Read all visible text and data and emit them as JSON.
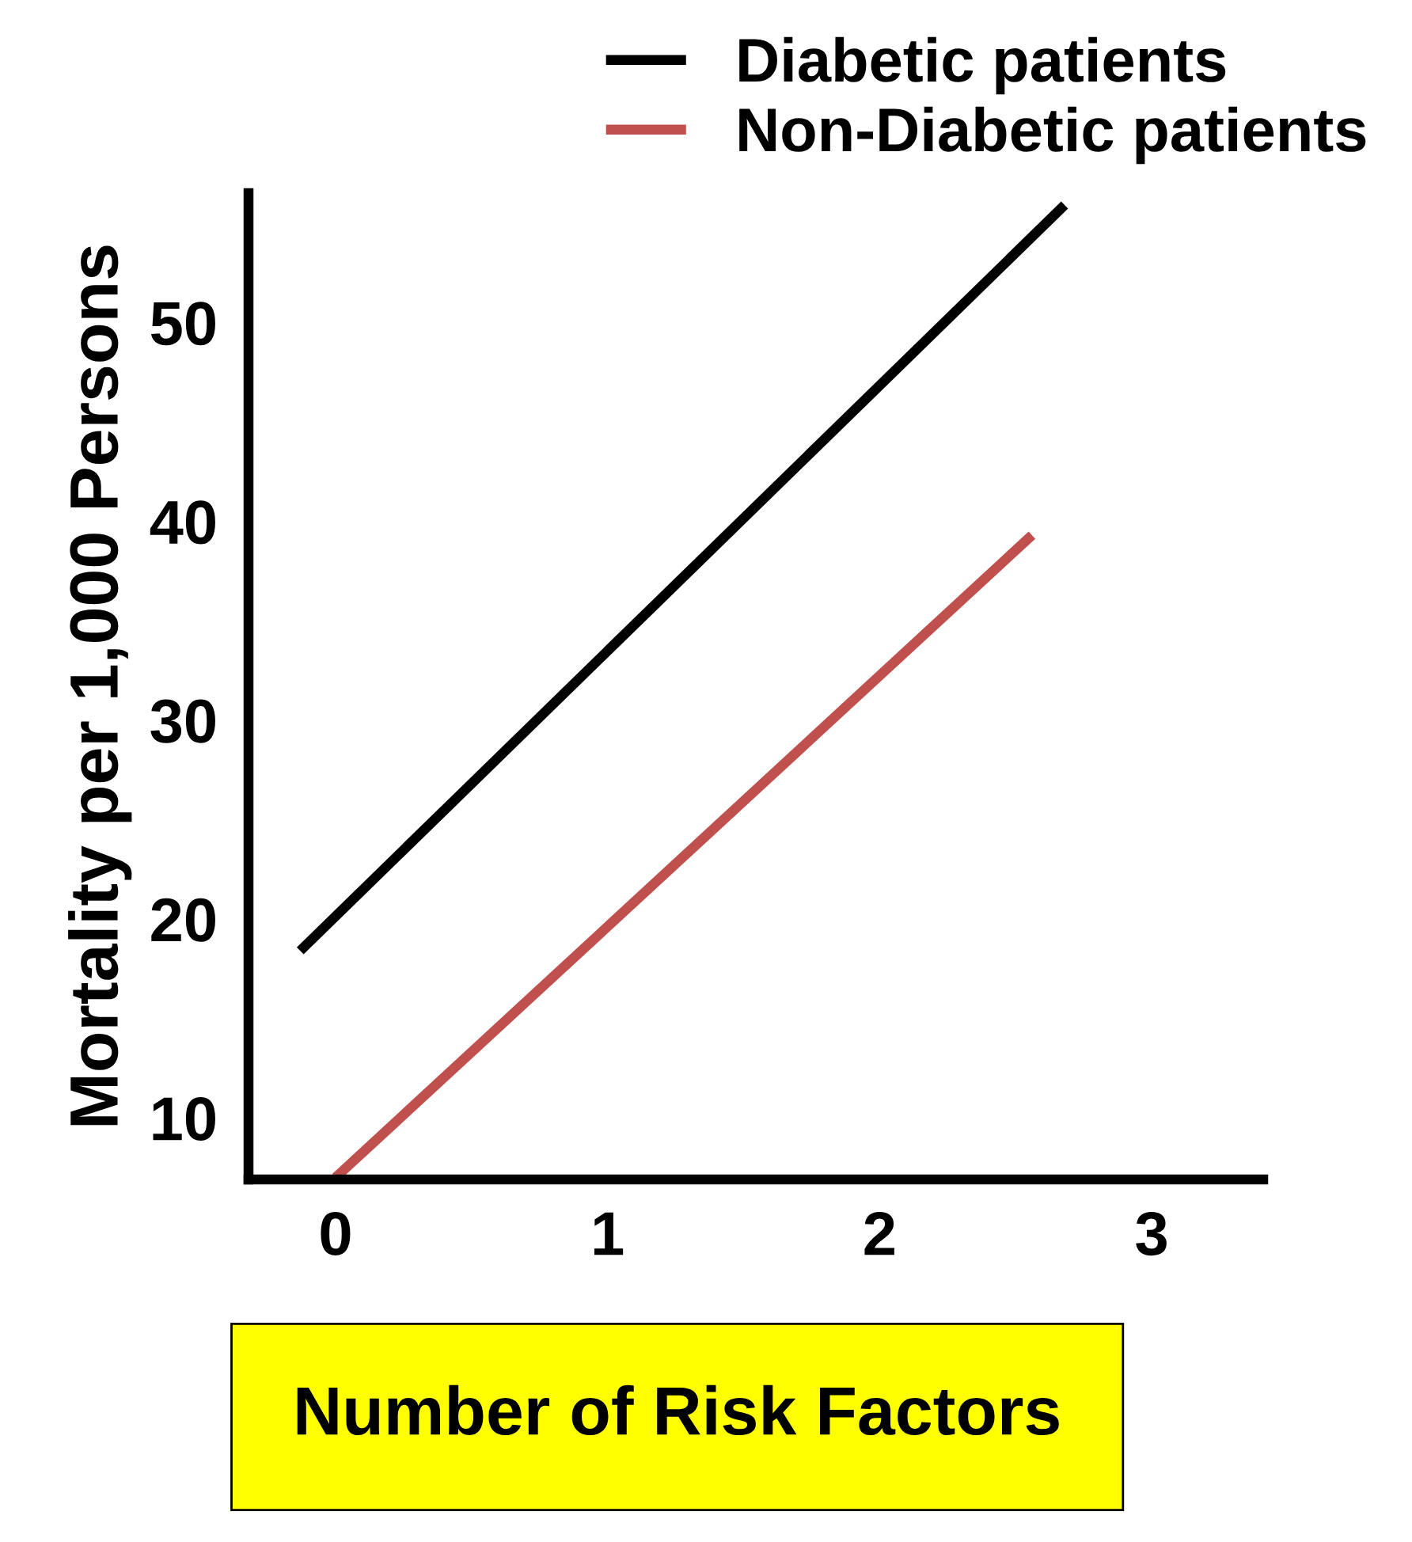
{
  "chart_data": {
    "type": "line",
    "xlabel": "Number of Risk Factors",
    "ylabel": "Mortality per 1,000 Persons",
    "xlim": [
      -0.32,
      3.41
    ],
    "ylim": [
      6.9,
      56.5
    ],
    "xticks": [
      0,
      1,
      2,
      3
    ],
    "yticks": [
      10,
      20,
      30,
      40,
      50
    ],
    "series": [
      {
        "name": "Diabetic patients",
        "color": "#000000",
        "x": [
          -0.13,
          2.68
        ],
        "values": [
          18.4,
          55.9
        ]
      },
      {
        "name": "Non-Diabetic patients",
        "color": "#c0504d",
        "x": [
          0,
          2.56
        ],
        "values": [
          7,
          39.3
        ]
      }
    ],
    "legend": "top",
    "grid": false,
    "marker": "none",
    "line_style": "solid"
  }
}
